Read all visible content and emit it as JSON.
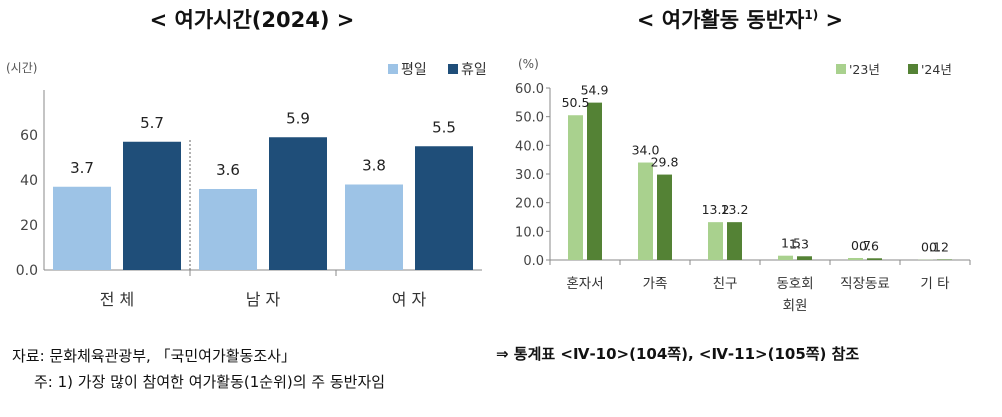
{
  "chart_data": [
    {
      "type": "bar",
      "title": "< 여가시간(2024) >",
      "unit_label": "(시간)",
      "categories": [
        "전 체",
        "남 자",
        "여 자"
      ],
      "series": [
        {
          "name": "평일",
          "values": [
            3.7,
            3.6,
            3.8
          ],
          "value_labels": [
            "3.7",
            "3.6",
            "3.8"
          ],
          "color": "#9dc3e6"
        },
        {
          "name": "휴일",
          "values": [
            5.7,
            5.9,
            5.5
          ],
          "value_labels": [
            "5.7",
            "5.9",
            "5.5"
          ],
          "color": "#1f4e79"
        }
      ],
      "ylim": [
        0,
        80
      ],
      "yticks": [
        0,
        20,
        40,
        60
      ],
      "ytick_labels": [
        "0.0",
        "20",
        "40",
        "60"
      ],
      "legend_position": "top-right",
      "grid": false
    },
    {
      "type": "bar",
      "title": "< 여가활동 동반자",
      "title_superscript": "1)",
      "title_suffix": ">",
      "unit_label": "(%)",
      "categories": [
        "혼자서",
        "가족",
        "친구",
        "동호회\n회원",
        "직장동료",
        "기 타"
      ],
      "series": [
        {
          "name": "'23년",
          "values": [
            50.5,
            34.0,
            13.2,
            1.5,
            0.7,
            0.1
          ],
          "value_labels": [
            "50.5",
            "34.0",
            "13.2",
            "1.5",
            "0.7",
            "0.1"
          ],
          "color": "#a9d18e"
        },
        {
          "name": "'24년",
          "values": [
            54.9,
            29.8,
            13.2,
            1.3,
            0.6,
            0.2
          ],
          "value_labels": [
            "54.9",
            "29.8",
            "13.2",
            "1.3",
            "0.6",
            "0.2"
          ],
          "color": "#548235"
        }
      ],
      "ylim": [
        0,
        60
      ],
      "yticks": [
        0,
        10,
        20,
        30,
        40,
        50,
        60
      ],
      "ytick_labels": [
        "0.0",
        "10.0",
        "20.0",
        "30.0",
        "40.0",
        "50.0",
        "60.0"
      ],
      "legend_position": "top-right",
      "grid": false
    }
  ],
  "footer": {
    "source": "자료: 문화체육관광부, 「국민여가활동조사」",
    "reference": "⇒ 통계표 <Ⅳ-10>(104쪽), <Ⅳ-11>(105쪽) 참조",
    "note": "주: 1) 가장 많이 참여한 여가활동(1순위)의 주 동반자임"
  }
}
